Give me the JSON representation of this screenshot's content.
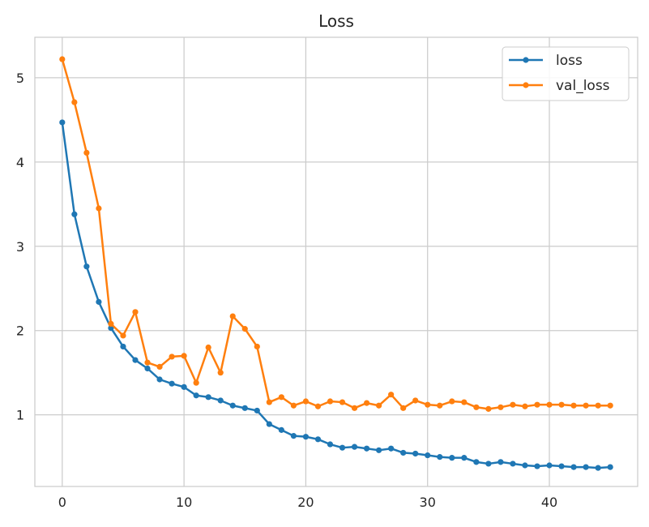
{
  "chart_data": {
    "type": "line",
    "title": "Loss",
    "xlabel": "",
    "ylabel": "",
    "xlim": [
      -2.25,
      47.25
    ],
    "ylim": [
      0.15,
      5.48
    ],
    "xticks": [
      0,
      10,
      20,
      30,
      40
    ],
    "yticks": [
      1,
      2,
      3,
      4,
      5
    ],
    "grid": true,
    "legend_position": "top-right",
    "series": [
      {
        "name": "loss",
        "color": "#1f77b4",
        "x": [
          0,
          1,
          2,
          3,
          4,
          5,
          6,
          7,
          8,
          9,
          10,
          11,
          12,
          13,
          14,
          15,
          16,
          17,
          18,
          19,
          20,
          21,
          22,
          23,
          24,
          25,
          26,
          27,
          28,
          29,
          30,
          31,
          32,
          33,
          34,
          35,
          36,
          37,
          38,
          39,
          40,
          41,
          42,
          43,
          44,
          45
        ],
        "values": [
          4.47,
          3.38,
          2.76,
          2.34,
          2.03,
          1.81,
          1.65,
          1.55,
          1.42,
          1.37,
          1.33,
          1.23,
          1.21,
          1.17,
          1.11,
          1.08,
          1.05,
          0.89,
          0.82,
          0.75,
          0.74,
          0.71,
          0.65,
          0.61,
          0.62,
          0.6,
          0.58,
          0.6,
          0.55,
          0.54,
          0.52,
          0.5,
          0.49,
          0.49,
          0.44,
          0.42,
          0.44,
          0.42,
          0.4,
          0.39,
          0.4,
          0.39,
          0.38,
          0.38,
          0.37,
          0.38
        ]
      },
      {
        "name": "val_loss",
        "color": "#ff7f0e",
        "x": [
          0,
          1,
          2,
          3,
          4,
          5,
          6,
          7,
          8,
          9,
          10,
          11,
          12,
          13,
          14,
          15,
          16,
          17,
          18,
          19,
          20,
          21,
          22,
          23,
          24,
          25,
          26,
          27,
          28,
          29,
          30,
          31,
          32,
          33,
          34,
          35,
          36,
          37,
          38,
          39,
          40,
          41,
          42,
          43,
          44,
          45
        ],
        "values": [
          5.22,
          4.71,
          4.11,
          3.45,
          2.08,
          1.94,
          2.22,
          1.62,
          1.57,
          1.69,
          1.7,
          1.38,
          1.8,
          1.5,
          2.17,
          2.02,
          1.81,
          1.15,
          1.21,
          1.11,
          1.16,
          1.1,
          1.16,
          1.15,
          1.08,
          1.14,
          1.11,
          1.24,
          1.08,
          1.17,
          1.12,
          1.11,
          1.16,
          1.15,
          1.09,
          1.07,
          1.09,
          1.12,
          1.1,
          1.12,
          1.12,
          1.12,
          1.11,
          1.11,
          1.11,
          1.11
        ]
      }
    ]
  }
}
